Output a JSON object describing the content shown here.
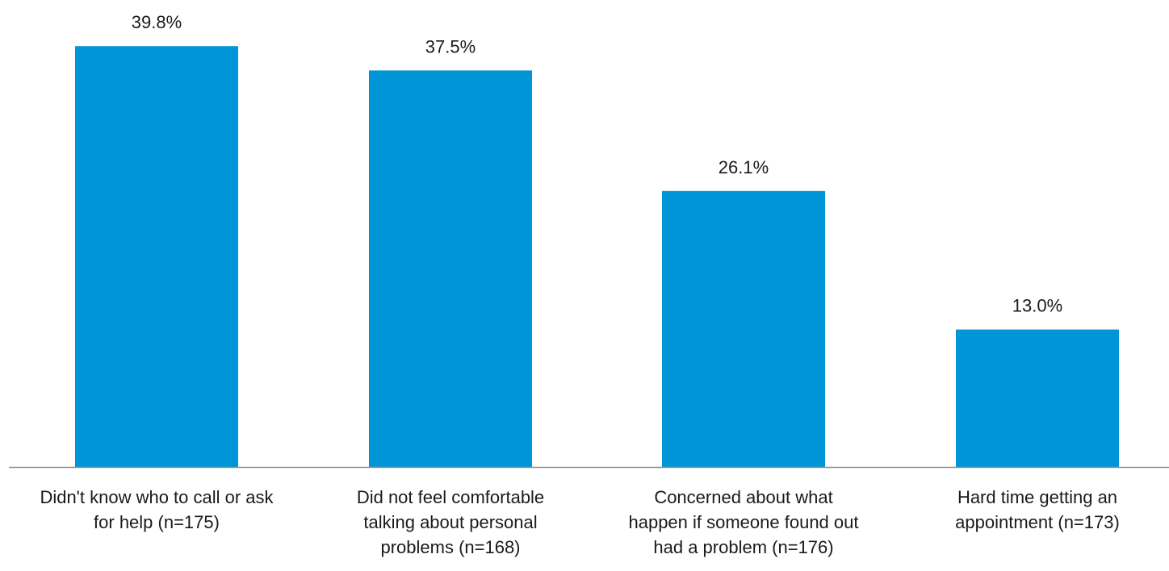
{
  "chart_data": {
    "type": "bar",
    "categories": [
      [
        "Didn't know who to call or ask",
        "for help (n=175)"
      ],
      [
        "Did not feel comfortable",
        "talking about personal",
        "problems (n=168)"
      ],
      [
        "Concerned about what",
        "happen if someone found out",
        "had a problem (n=176)"
      ],
      [
        "Hard time getting an",
        "appointment (n=173)"
      ]
    ],
    "values": [
      39.8,
      37.5,
      26.1,
      13.0
    ],
    "value_labels": [
      "39.8%",
      "37.5%",
      "26.1%",
      "13.0%"
    ],
    "ylim": [
      0,
      45
    ],
    "grid": false,
    "legend": "none",
    "bar_color": "#0095d6",
    "axis_color": "#8c8c8c"
  }
}
